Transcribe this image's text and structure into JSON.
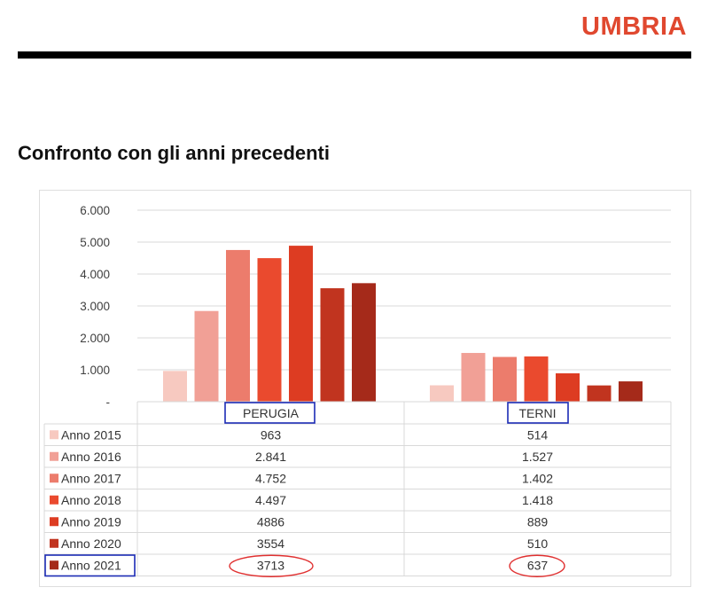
{
  "header": {
    "brand": "UMBRIA",
    "section_title": "Confronto con gli anni precedenti"
  },
  "colors": {
    "brand": "#e0482f",
    "highlight_box": "#1c2bb5",
    "highlight_ellipse": "#e03030"
  },
  "chart_data": {
    "type": "bar",
    "title": "",
    "xlabel": "",
    "ylabel": "",
    "categories": [
      "PERUGIA",
      "TERNI"
    ],
    "series": [
      {
        "name": "Anno 2015",
        "values": [
          963,
          514
        ],
        "labels": [
          "963",
          "514"
        ],
        "color": "#f7c9c0"
      },
      {
        "name": "Anno 2016",
        "values": [
          2841,
          1527
        ],
        "labels": [
          "2.841",
          "1.527"
        ],
        "color": "#f1a096"
      },
      {
        "name": "Anno 2017",
        "values": [
          4752,
          1402
        ],
        "labels": [
          "4.752",
          "1.402"
        ],
        "color": "#ec7c6c"
      },
      {
        "name": "Anno 2018",
        "values": [
          4497,
          1418
        ],
        "labels": [
          "4.497",
          "1.418"
        ],
        "color": "#ea4a2e"
      },
      {
        "name": "Anno 2019",
        "values": [
          4886,
          889
        ],
        "labels": [
          "4886",
          "889"
        ],
        "color": "#dd3c22"
      },
      {
        "name": "Anno 2020",
        "values": [
          3554,
          510
        ],
        "labels": [
          "3554",
          "510"
        ],
        "color": "#c1341f"
      },
      {
        "name": "Anno 2021",
        "values": [
          3713,
          637
        ],
        "labels": [
          "3713",
          "637"
        ],
        "color": "#a52a1a"
      }
    ],
    "ylim": [
      0,
      6000
    ],
    "yticks": [
      {
        "value": 0,
        "label": "-"
      },
      {
        "value": 1000,
        "label": "1.000"
      },
      {
        "value": 2000,
        "label": "2.000"
      },
      {
        "value": 3000,
        "label": "3.000"
      },
      {
        "value": 4000,
        "label": "4.000"
      },
      {
        "value": 5000,
        "label": "5.000"
      },
      {
        "value": 6000,
        "label": "6.000"
      }
    ],
    "grid": true,
    "legend": "data table below the chart",
    "highlighted_categories": [
      "PERUGIA",
      "TERNI"
    ],
    "highlighted_series": "Anno 2021"
  }
}
